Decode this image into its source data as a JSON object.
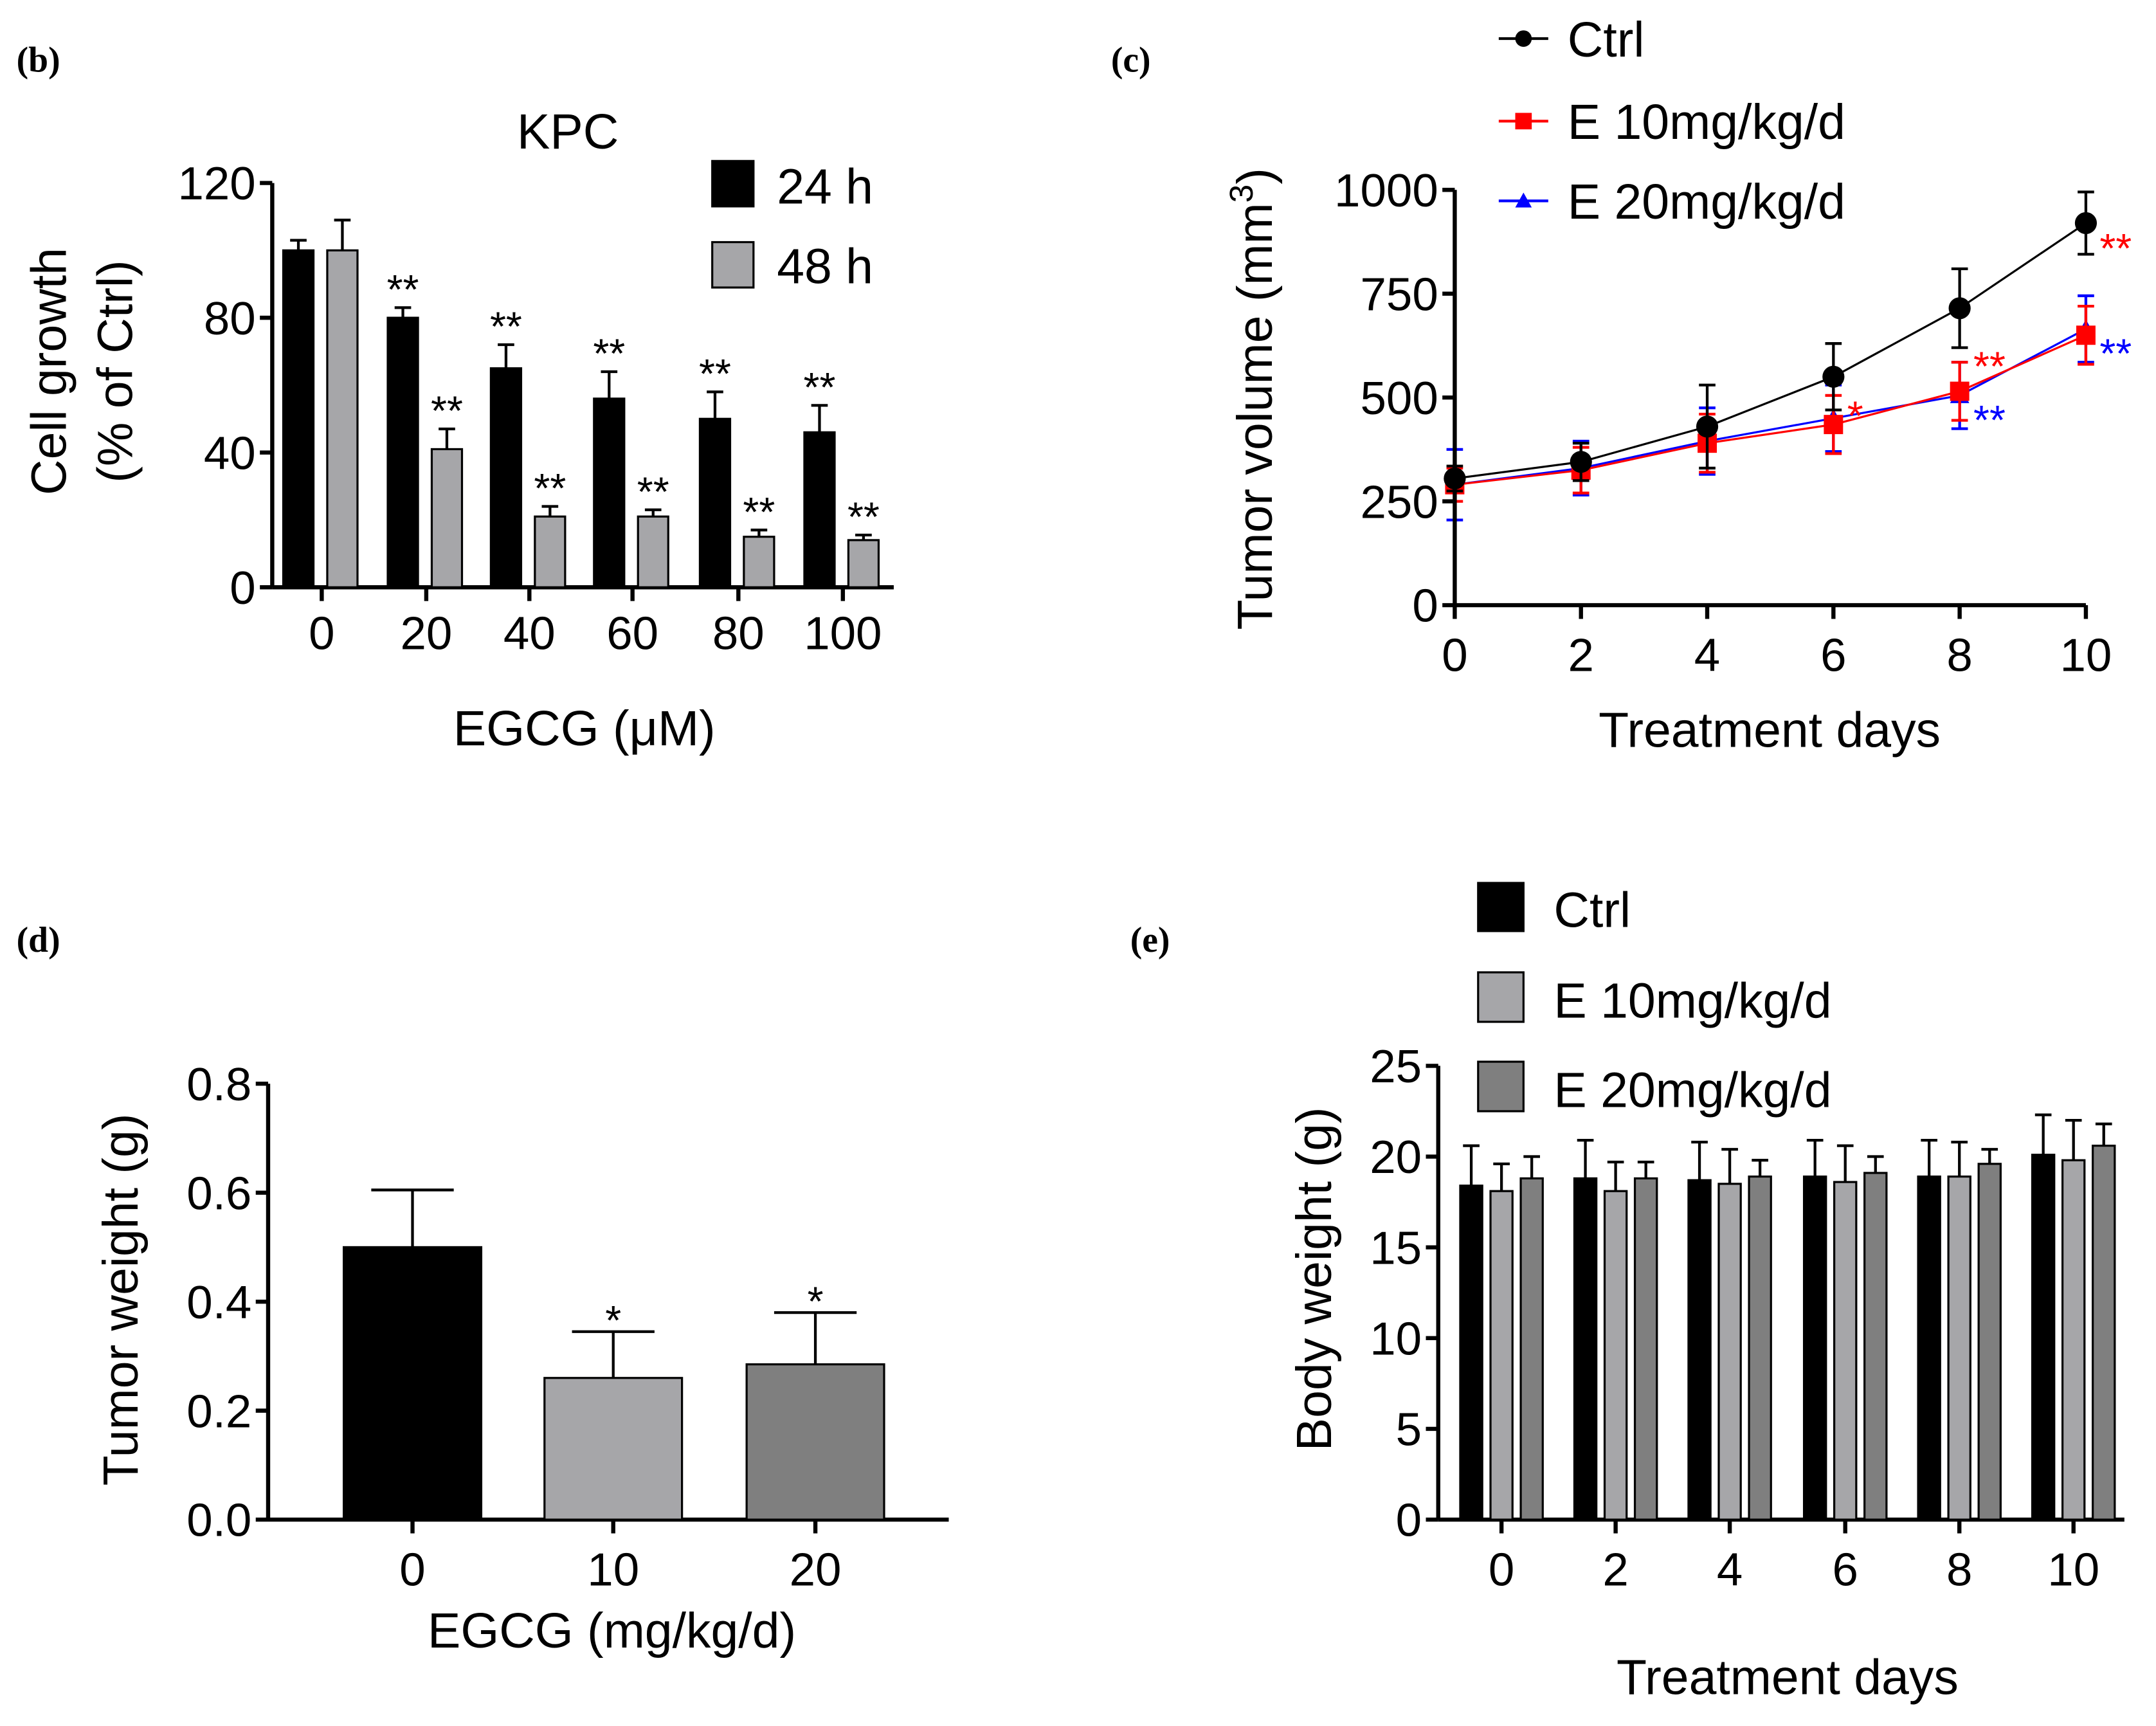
{
  "chart_data": [
    {
      "panel": "(b)",
      "type": "bar",
      "title": "KPC",
      "xlabel": "EGCG (μM)",
      "ylabel": [
        "Cell growth",
        "(% of Ctrl)"
      ],
      "categories": [
        "0",
        "20",
        "40",
        "60",
        "80",
        "100"
      ],
      "ylim": [
        0,
        120
      ],
      "yticks": [
        "0",
        "40",
        "80",
        "120"
      ],
      "series": [
        {
          "name": "24 h",
          "color": "#000000",
          "values": [
            100,
            80,
            65,
            56,
            50,
            46
          ],
          "errors": [
            3,
            3,
            7,
            8,
            8,
            8
          ],
          "stars": [
            "",
            "**",
            "**",
            "**",
            "**",
            "**"
          ]
        },
        {
          "name": "48 h",
          "color": "#a6a6a9",
          "values": [
            100,
            41,
            21,
            21,
            15,
            14
          ],
          "errors": [
            9,
            6,
            3,
            2,
            2,
            1.5
          ],
          "stars": [
            "",
            "**",
            "**",
            "**",
            "**",
            "**"
          ]
        }
      ],
      "legend": "top-right"
    },
    {
      "panel": "(c)",
      "type": "line",
      "xlabel": "Treatment days",
      "ylabel": "Tumor volume (mm",
      "ylabel_sup": "3",
      "ylabel_end": ")",
      "x": [
        0,
        2,
        4,
        6,
        8,
        10
      ],
      "xticks": [
        "0",
        "2",
        "4",
        "6",
        "8",
        "10"
      ],
      "ylim": [
        0,
        1000
      ],
      "yticks": [
        "0",
        "250",
        "500",
        "750",
        "1000"
      ],
      "series": [
        {
          "name": "Ctrl",
          "color": "#000000",
          "marker": "circle",
          "values": [
            305,
            345,
            430,
            550,
            715,
            920
          ],
          "errors": [
            30,
            45,
            100,
            80,
            95,
            75
          ],
          "stars": [
            "",
            "",
            "",
            "",
            "",
            ""
          ]
        },
        {
          "name": "E 10mg/kg/d",
          "color": "#ff0000",
          "marker": "square",
          "values": [
            290,
            325,
            390,
            435,
            515,
            650
          ],
          "errors": [
            40,
            55,
            70,
            70,
            70,
            70
          ],
          "stars": [
            "",
            "",
            "",
            "*",
            "**",
            "**"
          ]
        },
        {
          "name": "E 20mg/kg/d",
          "color": "#0000ff",
          "marker": "triangle",
          "values": [
            290,
            330,
            395,
            450,
            505,
            665
          ],
          "errors": [
            85,
            65,
            80,
            80,
            80,
            80
          ],
          "stars": [
            "",
            "",
            "",
            "",
            "**",
            "**"
          ]
        }
      ],
      "legend": "top-left"
    },
    {
      "panel": "(d)",
      "type": "bar",
      "xlabel": "EGCG (mg/kg/d)",
      "ylabel": "Tumor weight (g)",
      "categories": [
        "0",
        "10",
        "20"
      ],
      "ylim": [
        0,
        0.8
      ],
      "yticks": [
        "0.0",
        "0.2",
        "0.4",
        "0.6",
        "0.8"
      ],
      "series": [
        {
          "name": "",
          "colors": [
            "#000000",
            "#a6a6a9",
            "#7f7f7f"
          ],
          "values": [
            0.5,
            0.26,
            0.285
          ],
          "errors": [
            0.105,
            0.085,
            0.095
          ],
          "stars": [
            "",
            "*",
            "*"
          ]
        }
      ]
    },
    {
      "panel": "(e)",
      "type": "bar",
      "xlabel": "Treatment days",
      "ylabel": "Body weight (g)",
      "categories": [
        "0",
        "2",
        "4",
        "6",
        "8",
        "10"
      ],
      "ylim": [
        0,
        25
      ],
      "yticks": [
        "0",
        "5",
        "10",
        "15",
        "20",
        "25"
      ],
      "series": [
        {
          "name": "Ctrl",
          "color": "#000000",
          "values": [
            18.4,
            18.8,
            18.7,
            18.9,
            18.9,
            20.1
          ],
          "errors": [
            2.2,
            2.1,
            2.1,
            2.0,
            2.0,
            2.2
          ]
        },
        {
          "name": "E 10mg/kg/d",
          "color": "#a6a6a9",
          "values": [
            18.1,
            18.1,
            18.5,
            18.6,
            18.9,
            19.8
          ],
          "errors": [
            1.5,
            1.6,
            1.9,
            2.0,
            1.9,
            2.2
          ]
        },
        {
          "name": "E 20mg/kg/d",
          "color": "#7f7f7f",
          "values": [
            18.8,
            18.8,
            18.9,
            19.1,
            19.6,
            20.6
          ],
          "errors": [
            1.2,
            0.9,
            0.9,
            0.9,
            0.8,
            1.2
          ]
        }
      ],
      "legend": "top-left"
    }
  ]
}
